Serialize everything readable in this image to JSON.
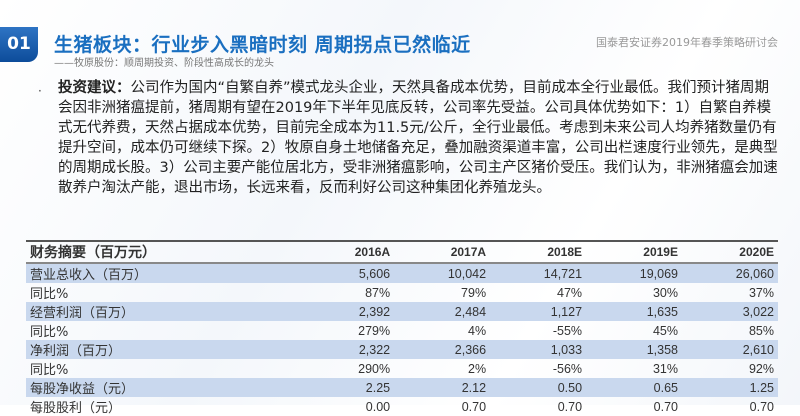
{
  "header": {
    "badge": "01",
    "title": "生猪板块：行业步入黑暗时刻 周期拐点已然临近",
    "subtitle": "——牧原股份：顺周期投资、阶段性高成长的龙头",
    "org": "国泰君安证券2019年春季策略研讨会"
  },
  "body": {
    "bullet": "·",
    "lead": "投资建议：",
    "text": "公司作为国内“自繁自养”模式龙头企业，天然具备成本优势，目前成本全行业最低。我们预计猪周期会因非洲猪瘟提前，猪周期有望在2019年下半年见底反转，公司率先受益。公司具体优势如下：1）自繁自养模式无代养费，天然占据成本优势，目前完全成本为11.5元/公斤，全行业最低。考虑到未来公司人均养猪数量仍有提升空间，成本仍可继续下探。2）牧原自身土地储备充足，叠加融资渠道丰富，公司出栏速度行业领先，是典型的周期成长股。3）公司主要产能位居北方，受非洲猪瘟影响，公司主产区猪价受压。我们认为，非洲猪瘟会加速散养户淘汰产能，退出市场，长远来看，反而利好公司这种集团化养殖龙头。"
  },
  "table": {
    "headers": [
      "财务摘要（百万元）",
      "2016A",
      "2017A",
      "2018E",
      "2019E",
      "2020E"
    ],
    "rows": [
      [
        "营业总收入（百万）",
        "5,606",
        "10,042",
        "14,721",
        "19,069",
        "26,060"
      ],
      [
        "同比%",
        "87%",
        "79%",
        "47%",
        "30%",
        "37%"
      ],
      [
        "经营利润（百万）",
        "2,392",
        "2,484",
        "1,127",
        "1,635",
        "3,022"
      ],
      [
        "同比%",
        "279%",
        "4%",
        "-55%",
        "45%",
        "85%"
      ],
      [
        "净利润（百万）",
        "2,322",
        "2,366",
        "1,033",
        "1,358",
        "2,610"
      ],
      [
        "同比%",
        "290%",
        "2%",
        "-56%",
        "31%",
        "92%"
      ],
      [
        "每股净收益（元）",
        "2.25",
        "2.12",
        "0.50",
        "0.65",
        "1.25"
      ],
      [
        "每股股利（元）",
        "0.00",
        "0.70",
        "0.70",
        "0.70",
        "0.70"
      ]
    ]
  }
}
